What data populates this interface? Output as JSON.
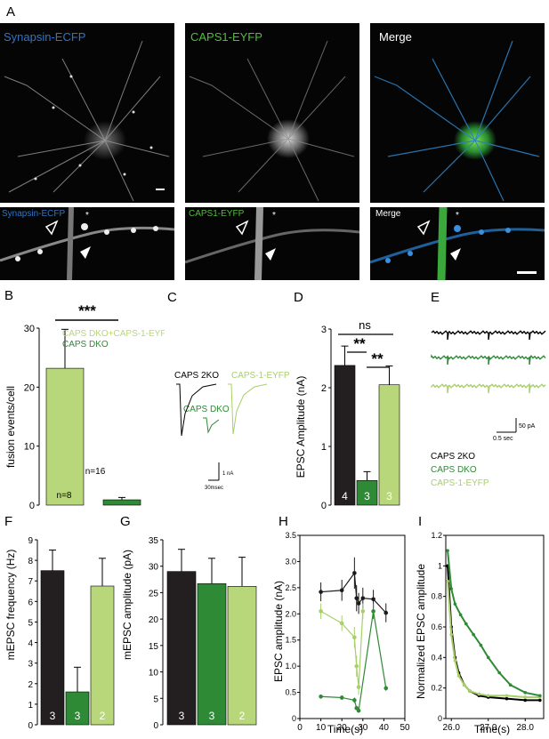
{
  "letters": {
    "A": "A",
    "B": "B",
    "C": "C",
    "D": "D",
    "E": "E",
    "F": "F",
    "G": "G",
    "H": "H",
    "I": "I"
  },
  "panelA": {
    "top_labels": [
      "Synapsin-ECFP",
      "CAPS1-EYFP",
      "Merge"
    ],
    "bottom_labels": [
      "Synapsin-ECFP",
      "CAPS1-EYFP",
      "Merge"
    ],
    "asterisk": "*",
    "colors": {
      "ecfp": "#2f74c8",
      "eyfp": "#4fbf3a",
      "merge": "#ffffff"
    }
  },
  "panelB": {
    "stars": "***",
    "legend": [
      "CAPS DKO+CAPS-1-EYFP",
      "CAPS DKO"
    ],
    "legend_colors": [
      "#b8d77a",
      "#2f8a36"
    ],
    "n_labels": [
      "n=8",
      "n=16"
    ],
    "chart_data": {
      "type": "bar",
      "ylabel": "fusion events/cell",
      "ylim": [
        0,
        30
      ],
      "yticks": [
        "0",
        "10",
        "20",
        "30"
      ],
      "categories": [
        "CAPS DKO+CAPS-1-EYFP",
        "CAPS DKO"
      ],
      "values": [
        23.2,
        0.9
      ],
      "errors": [
        6.6,
        0.4
      ],
      "colors": [
        "#b8d77a",
        "#2f8a36"
      ]
    }
  },
  "panelC": {
    "labels": [
      "CAPS 2KO",
      "CAPS-1-EYFP",
      "CAPS DKO"
    ],
    "label_colors": [
      "#000000",
      "#a9cf6a",
      "#2f8a36"
    ],
    "scale_y": "1 nA",
    "scale_x": "30msec"
  },
  "panelD": {
    "ns": "ns",
    "stars1": "**",
    "stars2": "**",
    "chart_data": {
      "type": "bar",
      "ylabel": "EPSC Amplitude (nA)",
      "ylim": [
        0,
        3
      ],
      "yticks": [
        "0",
        "1",
        "2",
        "3"
      ],
      "categories": [
        "CAPS 2KO",
        "CAPS DKO",
        "CAPS-1-EYFP"
      ],
      "values": [
        2.38,
        0.42,
        2.05
      ],
      "errors": [
        0.33,
        0.15,
        0.32
      ],
      "n": [
        "4",
        "3",
        "3"
      ],
      "colors": [
        "#231f20",
        "#2f8a36",
        "#b8d77a"
      ]
    }
  },
  "panelE": {
    "scale_y": "50 pA",
    "scale_x": "0.5 sec",
    "legend": [
      "CAPS 2KO",
      "CAPS DKO",
      "CAPS-1-EYFP"
    ],
    "legend_colors": [
      "#000000",
      "#2f8a36",
      "#a9cf6a"
    ]
  },
  "panelF": {
    "chart_data": {
      "type": "bar",
      "ylabel": "mEPSC frequency (Hz)",
      "ylim": [
        0,
        9
      ],
      "yticks": [
        "0",
        "1",
        "2",
        "3",
        "4",
        "5",
        "6",
        "7",
        "8",
        "9"
      ],
      "categories": [
        "CAPS 2KO",
        "CAPS DKO",
        "CAPS-1-EYFP"
      ],
      "values": [
        7.5,
        1.6,
        6.75
      ],
      "errors": [
        1.0,
        1.2,
        1.35
      ],
      "n": [
        "3",
        "3",
        "2"
      ],
      "colors": [
        "#231f20",
        "#2f8a36",
        "#b8d77a"
      ]
    }
  },
  "panelG": {
    "chart_data": {
      "type": "bar",
      "ylabel": "mEPSC amplitude (pA)",
      "ylim": [
        0,
        35
      ],
      "yticks": [
        "0",
        "5",
        "10",
        "15",
        "20",
        "25",
        "30",
        "35"
      ],
      "categories": [
        "CAPS 2KO",
        "CAPS DKO",
        "CAPS-1-EYFP"
      ],
      "values": [
        29.0,
        26.7,
        26.2
      ],
      "errors": [
        4.2,
        4.8,
        5.5
      ],
      "n": [
        "3",
        "3",
        "2"
      ],
      "colors": [
        "#231f20",
        "#2f8a36",
        "#b8d77a"
      ]
    }
  },
  "panelH": {
    "chart_data": {
      "type": "scatter",
      "xlabel": "Time(s)",
      "ylabel": "EPSC amplitude (nA)",
      "xlim": [
        0,
        50
      ],
      "ylim": [
        0,
        3.5
      ],
      "xticks": [
        "0",
        "10",
        "20",
        "30",
        "40",
        "50"
      ],
      "yticks": [
        "0",
        "0.5",
        "1.0",
        "1.5",
        "2.0",
        "2.5",
        "3.0",
        "3.5"
      ],
      "series": [
        {
          "color": "#1a1a1a",
          "x": [
            10,
            20,
            26,
            27,
            28,
            30,
            35,
            41
          ],
          "y": [
            2.42,
            2.45,
            2.78,
            2.3,
            2.2,
            2.3,
            2.28,
            2.02
          ],
          "err": [
            0.18,
            0.2,
            0.3,
            0.25,
            0.2,
            0.2,
            0.18,
            0.18
          ]
        },
        {
          "color": "#a9cf6a",
          "x": [
            10,
            20,
            26,
            27,
            28,
            30
          ],
          "y": [
            2.05,
            1.82,
            1.55,
            1.0,
            0.6,
            2.05
          ],
          "err": [
            0.15,
            0.15,
            0.2,
            0.2,
            0.15,
            0.15
          ]
        },
        {
          "color": "#2f8a36",
          "x": [
            10,
            20,
            26,
            27,
            28,
            35,
            41
          ],
          "y": [
            0.42,
            0.4,
            0.35,
            0.2,
            0.15,
            2.05,
            0.58
          ],
          "err": [
            0.04,
            0.04,
            0.05,
            0.04,
            0.03,
            0.15,
            0.05
          ]
        }
      ]
    }
  },
  "panelI": {
    "chart_data": {
      "type": "line",
      "xlabel": "Time(s)",
      "ylabel": "Normalized EPSC amplitude",
      "xlim": [
        25.85,
        28.5
      ],
      "ylim": [
        0,
        1.2
      ],
      "xticks": [
        "26.0",
        "27.0",
        "28.0"
      ],
      "yticks": [
        "0",
        "0.2",
        "0.4",
        "0.6",
        "0.8",
        "1",
        "1.2"
      ],
      "series": [
        {
          "color": "#000000",
          "x": [
            25.9,
            26.0,
            26.1,
            26.2,
            26.35,
            26.5,
            26.75,
            27.0,
            27.5,
            28.0,
            28.4
          ],
          "y": [
            1.0,
            0.6,
            0.4,
            0.3,
            0.22,
            0.18,
            0.15,
            0.14,
            0.13,
            0.12,
            0.12
          ]
        },
        {
          "color": "#a9cf6a",
          "x": [
            25.9,
            26.0,
            26.1,
            26.2,
            26.35,
            26.5,
            26.75,
            27.0,
            27.5,
            28.0,
            28.4
          ],
          "y": [
            0.9,
            0.55,
            0.38,
            0.28,
            0.22,
            0.18,
            0.16,
            0.15,
            0.15,
            0.14,
            0.14
          ]
        },
        {
          "color": "#2f8a36",
          "x": [
            25.9,
            26.0,
            26.1,
            26.25,
            26.4,
            26.6,
            26.8,
            27.0,
            27.3,
            27.6,
            28.0,
            28.4
          ],
          "y": [
            1.1,
            0.85,
            0.75,
            0.68,
            0.62,
            0.55,
            0.48,
            0.4,
            0.3,
            0.22,
            0.17,
            0.15
          ]
        }
      ]
    }
  }
}
